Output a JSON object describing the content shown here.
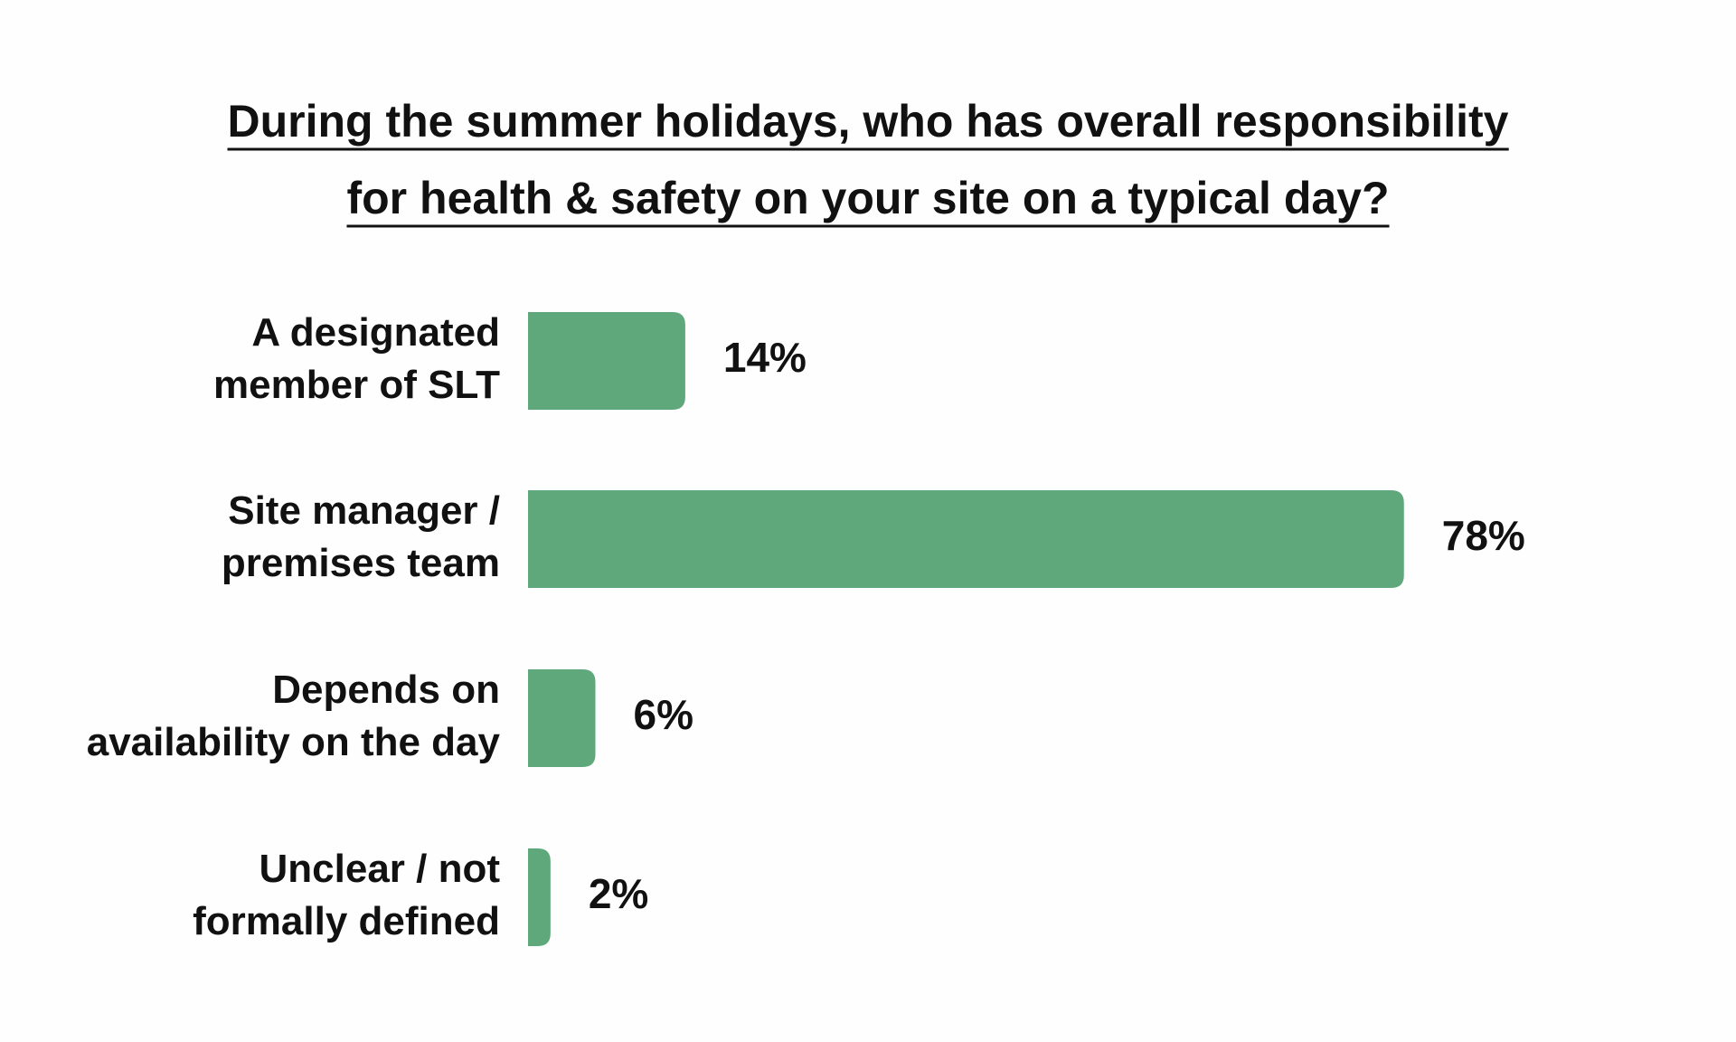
{
  "chart_data": {
    "type": "bar",
    "orientation": "horizontal",
    "title": "During the summer holidays, who has overall responsibility for health & safety on your site on a typical day?",
    "categories": [
      "A designated member of SLT",
      "Site manager / premises team",
      "Depends on availability on the day",
      "Unclear / not formally defined"
    ],
    "values": [
      14,
      78,
      6,
      2
    ],
    "value_labels": [
      "14%",
      "78%",
      "6%",
      "2%"
    ],
    "color": "#5fa87b"
  }
}
